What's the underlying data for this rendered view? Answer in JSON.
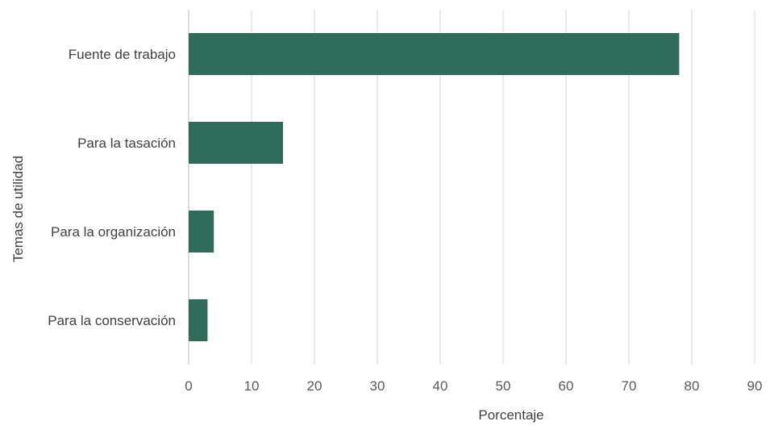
{
  "chart_data": {
    "type": "bar",
    "orientation": "horizontal",
    "categories": [
      "Fuente de trabajo",
      "Para  la tasación",
      "Para la organización",
      "Para la conservación"
    ],
    "values": [
      78,
      15,
      4,
      3
    ],
    "title": "",
    "xlabel": "Porcentaje",
    "ylabel": "Temas de utilidad",
    "xlim": [
      0,
      90
    ],
    "xticks": [
      0,
      10,
      20,
      30,
      40,
      50,
      60,
      70,
      80,
      90
    ],
    "grid": "vertical",
    "legend": "none",
    "bar_color": "#2e6b5a"
  }
}
